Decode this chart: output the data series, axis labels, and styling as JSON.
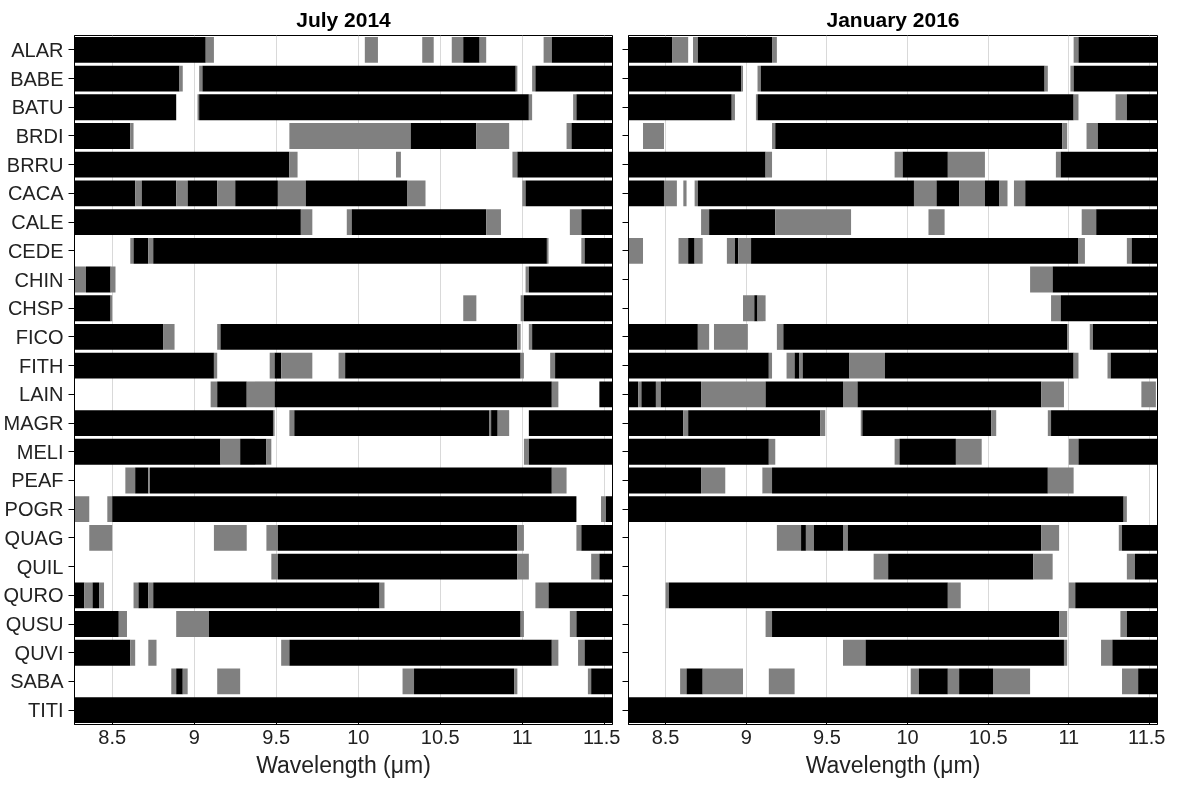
{
  "chart_data": [
    {
      "type": "bar",
      "orientation": "horizontal",
      "title": "July 2014",
      "xlabel": "Wavelength (μm)",
      "xlim": [
        8.27,
        11.55
      ],
      "xticks": [
        8.5,
        9,
        9.5,
        10,
        10.5,
        11,
        11.5
      ],
      "grid": "x",
      "categories": [
        "ALAR",
        "BABE",
        "BATU",
        "BRDI",
        "BRRU",
        "CACA",
        "CALE",
        "CEDE",
        "CHIN",
        "CHSP",
        "FICO",
        "FITH",
        "LAIN",
        "MAGR",
        "MELI",
        "PEAF",
        "POGR",
        "QUAG",
        "QUIL",
        "QURO",
        "QUSU",
        "QUVI",
        "SABA",
        "TITI"
      ],
      "series": [
        {
          "base": [
            8.27,
            8.27,
            8.27,
            8.27,
            8.27,
            8.27,
            8.27,
            8.61,
            8.27,
            8.27,
            8.27,
            8.27,
            9.1,
            8.27,
            8.27,
            8.58,
            8.27,
            8.36,
            9.47,
            8.27,
            8.27,
            8.27,
            8.86,
            8.27
          ],
          "values": [
            0.8,
            0.64,
            0.62,
            0.34,
            1.31,
            0.37,
            1.38,
            0.02,
            0.07,
            0.22,
            0.54,
            0.85,
            0.04,
            1.21,
            0.89,
            0.06,
            0.09,
            0.14,
            0.04,
            0.06,
            0.27,
            0.34,
            0.03,
            3.28
          ],
          "colors": [
            "#000000",
            "#000000",
            "#000000",
            "#000000",
            "#000000",
            "#000000",
            "#000000",
            "#808080",
            "#808080",
            "#000000",
            "#000000",
            "#000000",
            "#808080",
            "#000000",
            "#000000",
            "#808080",
            "#808080",
            "#808080",
            "#808080",
            "#000000",
            "#000000",
            "#000000",
            "#808080",
            "#000000"
          ]
        },
        {
          "base": [
            9.07,
            8.91,
            9.02,
            8.61,
            9.58,
            8.64,
            9.65,
            8.63,
            8.34,
            8.49,
            8.81,
            9.12,
            9.14,
            9.48,
            9.16,
            8.64,
            8.47,
            9.12,
            9.51,
            8.33,
            8.54,
            8.61,
            8.89,
            null
          ],
          "values": [
            0.05,
            0.02,
            0.01,
            0.02,
            0.05,
            0.04,
            0.07,
            0.09,
            0.15,
            0.01,
            0.07,
            0.02,
            0.18,
            0.01,
            0.12,
            0.08,
            0.03,
            0.2,
            1.46,
            0.05,
            0.05,
            0.03,
            0.04,
            null
          ],
          "colors": [
            "#808080",
            "#808080",
            "#808080",
            "#808080",
            "#808080",
            "#808080",
            "#808080",
            "#000000",
            "#000000",
            "#808080",
            "#808080",
            "#808080",
            "#000000",
            "#808080",
            "#808080",
            "#000000",
            "#808080",
            "#808080",
            "#000000",
            "#808080",
            "#808080",
            "#808080",
            "#000000",
            null
          ]
        },
        {
          "base": [
            10.04,
            9.03,
            9.03,
            9.58,
            10.23,
            8.68,
            9.93,
            8.72,
            8.49,
            10.64,
            9.14,
            9.46,
            9.32,
            9.58,
            9.28,
            8.72,
            8.5,
            9.44,
            10.97,
            8.38,
            8.89,
            8.72,
            8.93,
            null
          ],
          "values": [
            0.08,
            0.02,
            2.01,
            0.74,
            0.03,
            0.21,
            0.03,
            0.03,
            0.03,
            0.08,
            0.02,
            0.03,
            0.17,
            0.03,
            0.16,
            0.01,
            2.83,
            0.07,
            0.07,
            0.04,
            0.2,
            0.05,
            0.03,
            null
          ],
          "colors": [
            "#808080",
            "#808080",
            "#000000",
            "#808080",
            "#808080",
            "#000000",
            "#808080",
            "#808080",
            "#808080",
            "#808080",
            "#808080",
            "#808080",
            "#808080",
            "#808080",
            "#000000",
            "#808080",
            "#000000",
            "#808080",
            "#808080",
            "#000000",
            "#808080",
            "#808080",
            "#808080",
            null
          ]
        },
        {
          "base": [
            10.39,
            9.05,
            11.04,
            10.32,
            10.94,
            8.89,
            9.96,
            8.75,
            11.02,
            10.99,
            9.16,
            9.49,
            9.49,
            9.61,
            9.44,
            8.73,
            11.48,
            9.51,
            11.42,
            8.42,
            9.09,
            9.53,
            9.14,
            null
          ],
          "values": [
            0.07,
            1.91,
            0.02,
            0.4,
            0.03,
            0.07,
            0.82,
            2.4,
            0.02,
            0.02,
            1.81,
            0.04,
            1.69,
            1.19,
            0.03,
            2.45,
            0.03,
            1.46,
            0.05,
            0.03,
            1.9,
            0.05,
            0.14,
            null
          ],
          "colors": [
            "#808080",
            "#000000",
            "#808080",
            "#000000",
            "#808080",
            "#808080",
            "#000000",
            "#000000",
            "#808080",
            "#808080",
            "#000000",
            "#000000",
            "#000000",
            "#000000",
            "#808080",
            "#000000",
            "#808080",
            "#000000",
            "#808080",
            "#808080",
            "#000000",
            "#808080",
            "#808080",
            null
          ]
        },
        {
          "base": [
            10.57,
            10.96,
            11.31,
            10.72,
            10.97,
            8.96,
            10.78,
            11.15,
            11.04,
            11.01,
            10.97,
            9.53,
            11.18,
            10.8,
            11.01,
            11.18,
            11.51,
            10.97,
            11.47,
            8.63,
            10.99,
            9.58,
            10.27,
            null
          ],
          "values": [
            0.07,
            0.01,
            0.02,
            0.2,
            0.58,
            0.18,
            0.09,
            0.01,
            0.51,
            0.54,
            0.02,
            0.19,
            0.04,
            0.01,
            0.03,
            0.09,
            0.04,
            0.04,
            0.08,
            0.03,
            0.02,
            1.6,
            0.07,
            null
          ],
          "colors": [
            "#808080",
            "#808080",
            "#808080",
            "#808080",
            "#000000",
            "#000000",
            "#808080",
            "#808080",
            "#000000",
            "#000000",
            "#808080",
            "#808080",
            "#808080",
            "#808080",
            "#808080",
            "#808080",
            "#000000",
            "#808080",
            "#000000",
            "#808080",
            "#808080",
            "#000000",
            "#808080",
            null
          ]
        },
        {
          "base": [
            10.64,
            11.06,
            11.33,
            11.27,
            null,
            9.14,
            11.29,
            11.36,
            null,
            null,
            11.04,
            9.88,
            11.47,
            10.81,
            11.04,
            null,
            null,
            11.33,
            null,
            8.66,
            11.29,
            11.18,
            10.34,
            null
          ],
          "values": [
            0.1,
            0.02,
            0.22,
            0.03,
            null,
            0.11,
            0.07,
            0.02,
            null,
            null,
            0.02,
            0.04,
            0.08,
            0.04,
            0.51,
            null,
            null,
            0.03,
            null,
            0.06,
            0.04,
            0.04,
            0.61,
            null
          ],
          "colors": [
            "#000000",
            "#808080",
            "#000000",
            "#808080",
            null,
            "#808080",
            "#808080",
            "#808080",
            null,
            null,
            "#808080",
            "#808080",
            "#000000",
            "#000000",
            "#000000",
            null,
            null,
            "#808080",
            null,
            "#000000",
            "#808080",
            "#808080",
            "#000000",
            null
          ]
        },
        {
          "base": [
            10.74,
            11.08,
            null,
            11.3,
            null,
            9.25,
            11.36,
            11.38,
            null,
            null,
            11.06,
            9.92,
            null,
            10.85,
            null,
            null,
            null,
            11.36,
            null,
            8.72,
            11.33,
            11.34,
            10.95,
            null
          ],
          "values": [
            0.04,
            0.47,
            null,
            0.25,
            null,
            0.26,
            0.19,
            0.17,
            null,
            null,
            0.49,
            1.07,
            null,
            0.07,
            null,
            null,
            null,
            0.19,
            null,
            0.03,
            0.22,
            0.04,
            0.02,
            null
          ],
          "colors": [
            "#808080",
            "#000000",
            null,
            "#000000",
            null,
            "#000000",
            "#000000",
            "#000000",
            null,
            null,
            "#000000",
            "#000000",
            null,
            "#808080",
            null,
            null,
            null,
            "#000000",
            null,
            "#808080",
            "#000000",
            "#808080",
            "#808080",
            null
          ]
        },
        {
          "base": [
            11.13,
            null,
            null,
            null,
            null,
            9.51,
            null,
            null,
            null,
            null,
            null,
            10.99,
            null,
            11.04,
            null,
            null,
            null,
            null,
            null,
            8.75,
            null,
            11.38,
            11.4,
            null
          ],
          "values": [
            0.05,
            null,
            null,
            null,
            null,
            0.17,
            null,
            null,
            null,
            null,
            null,
            0.02,
            null,
            0.51,
            null,
            null,
            null,
            null,
            null,
            1.38,
            null,
            0.17,
            0.02,
            null
          ],
          "colors": [
            "#808080",
            null,
            null,
            null,
            null,
            "#808080",
            null,
            null,
            null,
            null,
            null,
            "#808080",
            null,
            "#000000",
            null,
            null,
            null,
            null,
            null,
            "#000000",
            null,
            "#000000",
            "#808080",
            null
          ]
        },
        {
          "base": [
            11.18,
            null,
            null,
            null,
            null,
            9.68,
            null,
            null,
            null,
            null,
            null,
            11.17,
            null,
            null,
            null,
            null,
            null,
            null,
            null,
            10.13,
            null,
            null,
            11.42,
            null
          ],
          "values": [
            0.37,
            null,
            null,
            null,
            null,
            0.62,
            null,
            null,
            null,
            null,
            null,
            0.03,
            null,
            null,
            null,
            null,
            null,
            null,
            null,
            0.03,
            null,
            null,
            0.13,
            null
          ],
          "colors": [
            "#000000",
            null,
            null,
            null,
            null,
            "#000000",
            null,
            null,
            null,
            null,
            null,
            "#808080",
            null,
            null,
            null,
            null,
            null,
            null,
            null,
            "#808080",
            null,
            null,
            "#000000",
            null
          ]
        },
        {
          "base": [
            null,
            null,
            null,
            null,
            null,
            10.3,
            null,
            null,
            null,
            null,
            null,
            11.2,
            null,
            null,
            null,
            null,
            null,
            null,
            null,
            11.08,
            null,
            null,
            null,
            null
          ],
          "values": [
            null,
            null,
            null,
            null,
            null,
            0.11,
            null,
            null,
            null,
            null,
            null,
            0.35,
            null,
            null,
            null,
            null,
            null,
            null,
            null,
            0.08,
            null,
            null,
            null,
            null
          ],
          "colors": [
            null,
            null,
            null,
            null,
            null,
            "#808080",
            null,
            null,
            null,
            null,
            null,
            "#000000",
            null,
            null,
            null,
            null,
            null,
            null,
            null,
            "#808080",
            null,
            null,
            null,
            null
          ]
        },
        {
          "base": [
            null,
            null,
            null,
            null,
            null,
            11.0,
            null,
            null,
            null,
            null,
            null,
            null,
            null,
            null,
            null,
            null,
            null,
            null,
            null,
            11.16,
            null,
            null,
            null,
            null
          ],
          "values": [
            null,
            null,
            null,
            null,
            null,
            0.02,
            null,
            null,
            null,
            null,
            null,
            null,
            null,
            null,
            null,
            null,
            null,
            null,
            null,
            0.39,
            null,
            null,
            null,
            null
          ],
          "colors": [
            null,
            null,
            null,
            null,
            null,
            "#808080",
            null,
            null,
            null,
            null,
            null,
            null,
            null,
            null,
            null,
            null,
            null,
            null,
            null,
            "#000000",
            null,
            null,
            null,
            null
          ]
        },
        {
          "base": [
            null,
            null,
            null,
            null,
            null,
            11.02,
            null,
            null,
            null,
            null,
            null,
            null,
            null,
            null,
            null,
            null,
            null,
            null,
            null,
            null,
            null,
            null,
            null,
            null
          ],
          "values": [
            null,
            null,
            null,
            null,
            null,
            0.53,
            null,
            null,
            null,
            null,
            null,
            null,
            null,
            null,
            null,
            null,
            null,
            null,
            null,
            null,
            null,
            null,
            null,
            null
          ],
          "colors": [
            null,
            null,
            null,
            null,
            null,
            "#000000",
            null,
            null,
            null,
            null,
            null,
            null,
            null,
            null,
            null,
            null,
            null,
            null,
            null,
            null,
            null,
            null,
            null,
            null
          ]
        }
      ]
    },
    {
      "type": "bar",
      "orientation": "horizontal",
      "title": "January 2016",
      "xlabel": "Wavelength (μm)",
      "xlim": [
        8.27,
        11.55
      ],
      "xticks": [
        8.5,
        9,
        9.5,
        10,
        10.5,
        11,
        11.5
      ],
      "grid": "x",
      "tick_labels": "x",
      "categories": [
        null,
        null,
        null,
        null,
        null,
        null,
        null,
        null,
        null,
        null,
        null,
        null,
        null,
        null,
        null,
        null,
        null,
        null,
        null,
        null,
        null,
        null,
        null,
        null
      ],
      "series": [
        {
          "base": [
            8.27,
            8.27,
            8.27,
            8.36,
            8.27,
            8.27,
            8.72,
            8.27,
            10.76,
            8.98,
            8.27,
            8.27,
            8.27,
            8.27,
            8.27,
            8.27,
            8.27,
            9.19,
            9.79,
            8.5,
            9.12,
            9.6,
            8.59,
            8.27
          ],
          "values": [
            0.27,
            0.7,
            0.64,
            0.13,
            0.85,
            0.22,
            0.05,
            0.09,
            0.14,
            0.07,
            0.43,
            0.87,
            0.06,
            0.34,
            0.87,
            0.45,
            3.07,
            0.15,
            0.09,
            0.02,
            0.04,
            0.14,
            0.04,
            3.28
          ],
          "colors": [
            "#000000",
            "#000000",
            "#000000",
            "#808080",
            "#000000",
            "#000000",
            "#808080",
            "#808080",
            "#808080",
            "#808080",
            "#000000",
            "#000000",
            "#000000",
            "#000000",
            "#000000",
            "#000000",
            "#000000",
            "#808080",
            "#808080",
            "#808080",
            "#808080",
            "#808080",
            "#808080",
            "#000000"
          ]
        },
        {
          "base": [
            8.54,
            8.97,
            8.91,
            9.16,
            9.12,
            8.49,
            8.77,
            8.58,
            10.9,
            9.05,
            8.7,
            9.14,
            8.33,
            8.61,
            9.14,
            8.72,
            11.34,
            9.34,
            9.88,
            8.52,
            9.16,
            9.74,
            8.63,
            null
          ],
          "values": [
            0.1,
            0.01,
            0.02,
            0.02,
            0.04,
            0.08,
            0.41,
            0.06,
            0.65,
            0.02,
            0.07,
            0.02,
            0.02,
            0.03,
            0.04,
            0.15,
            0.02,
            0.03,
            0.9,
            1.73,
            1.78,
            1.23,
            0.1,
            null
          ],
          "colors": [
            "#808080",
            "#808080",
            "#808080",
            "#808080",
            "#808080",
            "#808080",
            "#000000",
            "#808080",
            "#000000",
            "#000000",
            "#808080",
            "#808080",
            "#808080",
            "#808080",
            "#808080",
            "#808080",
            "#808080",
            "#000000",
            "#000000",
            "#000000",
            "#000000",
            "#000000",
            "#000000",
            null
          ]
        },
        {
          "base": [
            8.67,
            9.07,
            9.06,
            9.18,
            9.92,
            8.61,
            9.18,
            8.64,
            null,
            9.07,
            8.8,
            9.25,
            8.35,
            8.64,
            9.92,
            9.1,
            null,
            9.37,
            10.78,
            10.25,
            10.94,
            10.97,
            8.73,
            null
          ],
          "values": [
            0.03,
            0.02,
            0.01,
            1.78,
            0.05,
            0.02,
            0.47,
            0.04,
            null,
            0.05,
            0.21,
            0.05,
            0.09,
            0.82,
            0.03,
            0.06,
            null,
            0.05,
            0.12,
            0.08,
            0.05,
            0.02,
            0.25,
            null
          ],
          "colors": [
            "#808080",
            "#808080",
            "#808080",
            "#000000",
            "#808080",
            "#808080",
            "#808080",
            "#000000",
            null,
            "#808080",
            "#808080",
            "#808080",
            "#000000",
            "#000000",
            "#808080",
            "#808080",
            null,
            "#808080",
            "#808080",
            "#808080",
            "#808080",
            "#808080",
            "#808080",
            null
          ]
        },
        {
          "base": [
            8.7,
            9.09,
            9.07,
            10.96,
            9.97,
            8.68,
            10.13,
            8.68,
            null,
            10.89,
            9.19,
            9.3,
            8.44,
            9.46,
            9.95,
            9.16,
            null,
            9.42,
            11.36,
            11.0,
            11.32,
            11.2,
            9.14,
            null
          ],
          "values": [
            0.46,
            1.76,
            1.96,
            0.03,
            0.28,
            0.02,
            0.1,
            0.05,
            null,
            0.06,
            0.04,
            0.03,
            0.03,
            0.03,
            0.35,
            1.71,
            null,
            0.18,
            0.05,
            0.04,
            0.04,
            0.07,
            0.16,
            null
          ],
          "colors": [
            "#000000",
            "#000000",
            "#000000",
            "#808080",
            "#000000",
            "#808080",
            "#808080",
            "#808080",
            null,
            "#808080",
            "#808080",
            "#000000",
            "#808080",
            "#808080",
            "#000000",
            "#000000",
            null,
            "#000000",
            "#808080",
            "#808080",
            "#808080",
            "#808080",
            "#808080",
            null
          ]
        },
        {
          "base": [
            9.16,
            10.85,
            11.03,
            11.11,
            10.25,
            8.7,
            11.08,
            8.88,
            null,
            10.95,
            9.23,
            9.33,
            8.47,
            9.71,
            10.3,
            10.87,
            null,
            9.6,
            11.41,
            11.04,
            11.36,
            11.27,
            10.02,
            null
          ],
          "values": [
            0.03,
            0.02,
            0.03,
            0.07,
            0.23,
            1.34,
            0.09,
            0.05,
            null,
            0.6,
            1.76,
            0.02,
            0.25,
            0.01,
            0.16,
            0.16,
            null,
            0.03,
            0.14,
            0.51,
            0.19,
            0.28,
            0.05,
            null
          ],
          "colors": [
            "#808080",
            "#808080",
            "#808080",
            "#808080",
            "#808080",
            "#000000",
            "#808080",
            "#808080",
            null,
            "#000000",
            "#000000",
            "#808080",
            "#000000",
            "#808080",
            "#808080",
            "#808080",
            null,
            "#808080",
            "#000000",
            "#000000",
            "#000000",
            "#000000",
            "#808080",
            null
          ]
        },
        {
          "base": [
            11.03,
            11.01,
            11.29,
            11.18,
            10.92,
            10.04,
            11.17,
            8.93,
            null,
            null,
            10.99,
            9.35,
            8.72,
            9.72,
            11.0,
            null,
            null,
            9.63,
            null,
            null,
            null,
            null,
            10.07,
            null
          ],
          "values": [
            0.03,
            0.02,
            0.07,
            0.37,
            0.03,
            0.14,
            0.38,
            0.02,
            null,
            null,
            0.01,
            0.29,
            0.4,
            0.8,
            0.06,
            null,
            null,
            1.2,
            null,
            null,
            null,
            null,
            0.18,
            null
          ],
          "colors": [
            "#808080",
            "#808080",
            "#808080",
            "#000000",
            "#808080",
            "#808080",
            "#000000",
            "#000000",
            null,
            null,
            "#808080",
            "#000000",
            "#808080",
            "#000000",
            "#808080",
            null,
            null,
            "#000000",
            null,
            null,
            null,
            null,
            "#000000",
            null
          ]
        },
        {
          "base": [
            11.06,
            11.03,
            11.36,
            null,
            10.95,
            10.18,
            null,
            8.95,
            null,
            null,
            11.13,
            9.64,
            9.12,
            10.52,
            11.06,
            null,
            null,
            10.83,
            null,
            null,
            null,
            null,
            10.25,
            null
          ],
          "values": [
            0.49,
            0.52,
            0.19,
            null,
            0.6,
            0.14,
            null,
            0.08,
            null,
            null,
            0.02,
            0.22,
            0.48,
            0.03,
            0.49,
            null,
            null,
            0.11,
            null,
            null,
            null,
            null,
            0.07,
            null
          ],
          "colors": [
            "#000000",
            "#000000",
            "#000000",
            null,
            "#000000",
            "#000000",
            null,
            "#808080",
            null,
            null,
            "#808080",
            "#808080",
            "#000000",
            "#808080",
            "#000000",
            null,
            null,
            "#808080",
            null,
            null,
            null,
            null,
            "#808080",
            null
          ]
        },
        {
          "base": [
            null,
            null,
            null,
            null,
            null,
            10.32,
            null,
            9.03,
            null,
            null,
            11.15,
            9.86,
            9.6,
            10.87,
            null,
            null,
            null,
            11.31,
            null,
            null,
            null,
            null,
            10.32,
            null
          ],
          "values": [
            null,
            null,
            null,
            null,
            null,
            0.16,
            null,
            2.03,
            null,
            null,
            0.4,
            1.17,
            0.09,
            0.02,
            null,
            null,
            null,
            0.02,
            null,
            null,
            null,
            null,
            0.21,
            null
          ],
          "colors": [
            null,
            null,
            null,
            null,
            null,
            "#808080",
            null,
            "#000000",
            null,
            null,
            "#000000",
            "#000000",
            "#808080",
            "#808080",
            null,
            null,
            null,
            "#808080",
            null,
            null,
            null,
            null,
            "#000000",
            null
          ]
        },
        {
          "base": [
            null,
            null,
            null,
            null,
            null,
            10.48,
            null,
            11.06,
            null,
            null,
            null,
            11.03,
            9.69,
            10.89,
            null,
            null,
            null,
            11.33,
            null,
            null,
            null,
            null,
            10.53,
            null
          ],
          "values": [
            null,
            null,
            null,
            null,
            null,
            0.09,
            null,
            0.04,
            null,
            null,
            null,
            0.03,
            1.14,
            0.66,
            null,
            null,
            null,
            0.22,
            null,
            null,
            null,
            null,
            0.23,
            null
          ],
          "colors": [
            null,
            null,
            null,
            null,
            null,
            "#000000",
            null,
            "#808080",
            null,
            null,
            null,
            "#808080",
            "#000000",
            "#000000",
            null,
            null,
            null,
            "#000000",
            null,
            null,
            null,
            null,
            "#808080",
            null
          ]
        },
        {
          "base": [
            null,
            null,
            null,
            null,
            null,
            10.57,
            null,
            11.36,
            null,
            null,
            null,
            11.24,
            10.83,
            null,
            null,
            null,
            null,
            null,
            null,
            null,
            null,
            null,
            11.33,
            null
          ],
          "values": [
            null,
            null,
            null,
            null,
            null,
            0.05,
            null,
            0.03,
            null,
            null,
            null,
            0.02,
            0.14,
            null,
            null,
            null,
            null,
            null,
            null,
            null,
            null,
            null,
            0.1,
            null
          ],
          "colors": [
            null,
            null,
            null,
            null,
            null,
            "#808080",
            null,
            "#808080",
            null,
            null,
            null,
            "#808080",
            "#808080",
            null,
            null,
            null,
            null,
            null,
            null,
            null,
            null,
            null,
            "#808080",
            null
          ]
        },
        {
          "base": [
            null,
            null,
            null,
            null,
            null,
            10.66,
            null,
            11.39,
            null,
            null,
            null,
            11.26,
            11.45,
            null,
            null,
            null,
            null,
            null,
            null,
            null,
            null,
            null,
            11.43,
            null
          ],
          "values": [
            null,
            null,
            null,
            null,
            null,
            0.07,
            null,
            0.16,
            null,
            null,
            null,
            0.29,
            0.09,
            null,
            null,
            null,
            null,
            null,
            null,
            null,
            null,
            null,
            0.12,
            null
          ],
          "colors": [
            null,
            null,
            null,
            null,
            null,
            "#808080",
            null,
            "#000000",
            null,
            null,
            null,
            "#000000",
            "#808080",
            null,
            null,
            null,
            null,
            null,
            null,
            null,
            null,
            null,
            "#000000",
            null
          ]
        },
        {
          "base": [
            null,
            null,
            null,
            null,
            null,
            10.73,
            null,
            null,
            null,
            null,
            null,
            null,
            null,
            null,
            null,
            null,
            null,
            null,
            null,
            null,
            null,
            null,
            null,
            null
          ],
          "values": [
            null,
            null,
            null,
            null,
            null,
            0.82,
            null,
            null,
            null,
            null,
            null,
            null,
            null,
            null,
            null,
            null,
            null,
            null,
            null,
            null,
            null,
            null,
            null,
            null
          ],
          "colors": [
            null,
            null,
            null,
            null,
            null,
            "#000000",
            null,
            null,
            null,
            null,
            null,
            null,
            null,
            null,
            null,
            null,
            null,
            null,
            null,
            null,
            null,
            null,
            null,
            null
          ]
        }
      ]
    }
  ]
}
